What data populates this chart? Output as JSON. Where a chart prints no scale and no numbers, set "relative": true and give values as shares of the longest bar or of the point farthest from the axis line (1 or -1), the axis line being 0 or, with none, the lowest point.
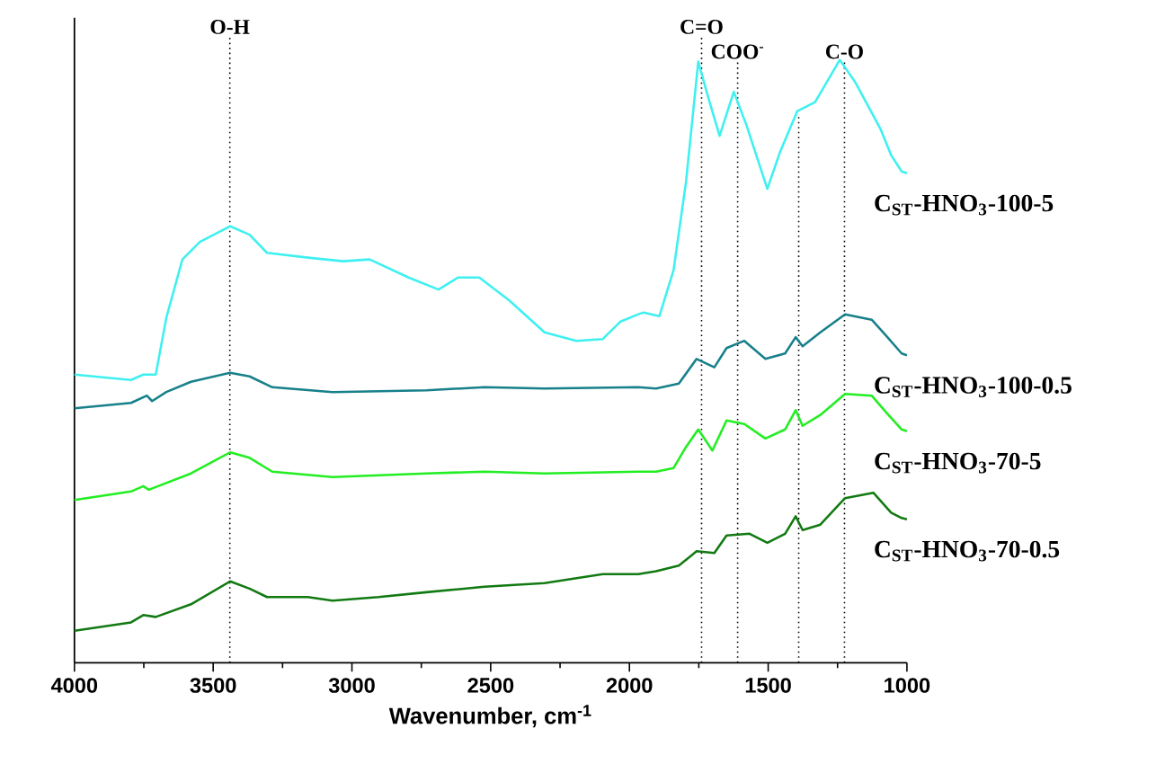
{
  "chart_data": {
    "type": "line",
    "relative": true,
    "xlabel": "Wavenumber, cm$^{-1}$",
    "xlim": [
      4000,
      1000
    ],
    "xticks": [
      4000,
      3500,
      3000,
      2500,
      2000,
      1500,
      1000
    ],
    "tick_labels": "x",
    "series": [
      {
        "name": "C$_{ST}$-HNO$_{3}$-100-5",
        "color": "#3ff0f0",
        "x": [
          4000,
          3796,
          3752,
          3707,
          3669,
          3611,
          3548,
          3439,
          3369,
          3306,
          3159,
          3032,
          2936,
          2796,
          2688,
          2618,
          2541,
          2433,
          2306,
          2191,
          2096,
          2032,
          1968,
          1949,
          1892,
          1841,
          1796,
          1752,
          1713,
          1675,
          1624,
          1580,
          1503,
          1459,
          1395,
          1331,
          1242,
          1185,
          1096,
          1057,
          1019,
          1000
        ],
        "values": [
          0.478,
          0.469,
          0.478,
          0.478,
          0.572,
          0.669,
          0.698,
          0.724,
          0.71,
          0.68,
          0.672,
          0.666,
          0.669,
          0.639,
          0.619,
          0.639,
          0.639,
          0.601,
          0.548,
          0.534,
          0.537,
          0.566,
          0.578,
          0.581,
          0.575,
          0.651,
          0.798,
          0.997,
          0.933,
          0.874,
          0.947,
          0.894,
          0.786,
          0.845,
          0.915,
          0.93,
          1.0,
          0.962,
          0.886,
          0.842,
          0.815,
          0.812
        ]
      },
      {
        "name": "C$_{ST}$-HNO$_{3}$-100-0.5",
        "color": "#17808a",
        "x": [
          4000,
          3796,
          3739,
          3720,
          3669,
          3580,
          3439,
          3369,
          3287,
          3070,
          2732,
          2522,
          2306,
          1968,
          1904,
          1822,
          1758,
          1694,
          1650,
          1586,
          1510,
          1439,
          1401,
          1376,
          1312,
          1223,
          1127,
          1076,
          1019,
          1000
        ],
        "values": [
          0.422,
          0.431,
          0.443,
          0.434,
          0.449,
          0.466,
          0.481,
          0.475,
          0.457,
          0.449,
          0.452,
          0.457,
          0.455,
          0.457,
          0.455,
          0.463,
          0.504,
          0.49,
          0.522,
          0.534,
          0.504,
          0.513,
          0.54,
          0.525,
          0.548,
          0.578,
          0.569,
          0.543,
          0.513,
          0.51
        ]
      },
      {
        "name": "C$_{ST}$-HNO$_{3}$-70-5",
        "color": "#22ee22",
        "x": [
          4000,
          3796,
          3752,
          3732,
          3580,
          3439,
          3369,
          3287,
          3070,
          2732,
          2522,
          2306,
          1968,
          1904,
          1841,
          1796,
          1752,
          1701,
          1650,
          1586,
          1510,
          1439,
          1401,
          1376,
          1312,
          1223,
          1127,
          1076,
          1019,
          1000
        ],
        "values": [
          0.27,
          0.284,
          0.293,
          0.287,
          0.314,
          0.349,
          0.34,
          0.317,
          0.308,
          0.314,
          0.317,
          0.314,
          0.317,
          0.317,
          0.323,
          0.358,
          0.387,
          0.352,
          0.402,
          0.396,
          0.372,
          0.387,
          0.419,
          0.393,
          0.411,
          0.446,
          0.443,
          0.416,
          0.387,
          0.384
        ]
      },
      {
        "name": "C$_{ST}$-HNO$_{3}$-70-0.5",
        "color": "#127a12",
        "x": [
          4000,
          3796,
          3752,
          3707,
          3580,
          3439,
          3369,
          3306,
          3159,
          3070,
          2904,
          2732,
          2522,
          2306,
          2096,
          1968,
          1904,
          1822,
          1758,
          1694,
          1650,
          1567,
          1503,
          1439,
          1401,
          1376,
          1312,
          1223,
          1121,
          1057,
          1019,
          1000
        ],
        "values": [
          0.053,
          0.067,
          0.079,
          0.076,
          0.097,
          0.135,
          0.123,
          0.109,
          0.109,
          0.103,
          0.109,
          0.117,
          0.126,
          0.132,
          0.147,
          0.147,
          0.152,
          0.161,
          0.185,
          0.182,
          0.211,
          0.214,
          0.199,
          0.214,
          0.243,
          0.22,
          0.229,
          0.273,
          0.282,
          0.249,
          0.24,
          0.238
        ]
      }
    ],
    "ref_lines": [
      {
        "axis": "x",
        "value": 3440,
        "label": "O-H",
        "line_style": "dotted"
      },
      {
        "axis": "x",
        "value": 1740,
        "label": "C=O",
        "line_style": "dotted"
      },
      {
        "axis": "x",
        "value": 1610,
        "label": "COO$^{-}$",
        "line_style": "dotted"
      },
      {
        "axis": "x",
        "value": 1390,
        "line_style": "dotted"
      },
      {
        "axis": "x",
        "value": 1225,
        "label": "C-O",
        "line_style": "dotted"
      }
    ]
  }
}
